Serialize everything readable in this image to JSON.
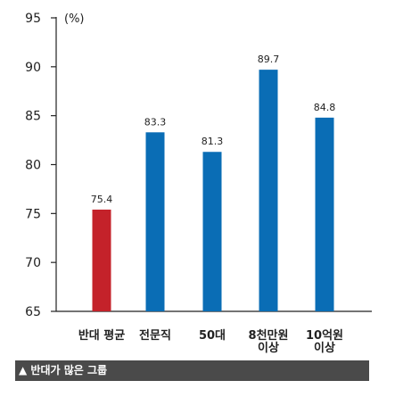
{
  "chart_data": {
    "type": "bar",
    "ylabel": "(%)",
    "ylim": [
      65,
      95
    ],
    "yticks": [
      65,
      70,
      75,
      80,
      85,
      90,
      95
    ],
    "grid": false,
    "categories": [
      [
        "반대 평균"
      ],
      [
        "전문직"
      ],
      [
        "50대"
      ],
      [
        "8천만원",
        "이상"
      ],
      [
        "10억원",
        "이상"
      ]
    ],
    "values": [
      75.4,
      83.3,
      81.3,
      89.7,
      84.8
    ],
    "value_labels": [
      "75.4",
      "83.3",
      "81.3",
      "89.7",
      "84.8"
    ],
    "bar_colors": [
      "#c4222a",
      "#0a6db5",
      "#0a6db5",
      "#0a6db5",
      "#0a6db5"
    ]
  },
  "footer": {
    "text": "▲ 반대가 많은 그룹",
    "background": "#4a4a4a"
  }
}
